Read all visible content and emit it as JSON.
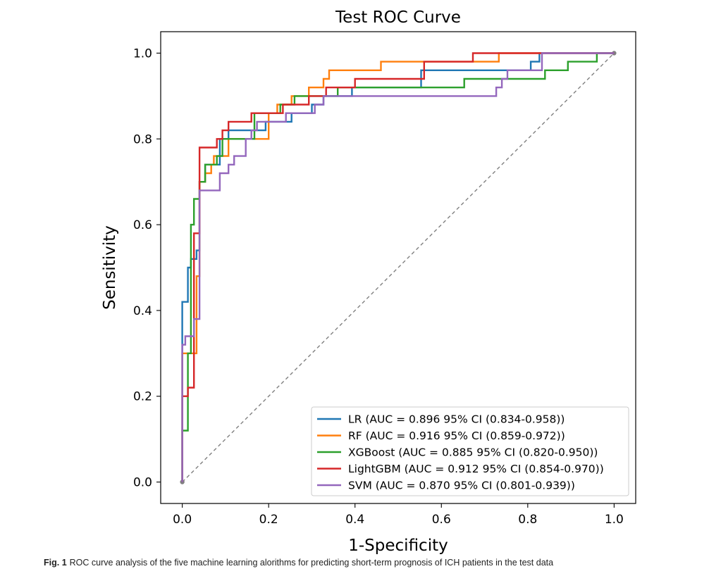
{
  "chart_data": {
    "type": "line",
    "title": "Test ROC Curve",
    "xlabel": "1-Specificity",
    "ylabel": "Sensitivity",
    "xlim": [
      -0.05,
      1.05
    ],
    "ylim": [
      -0.05,
      1.05
    ],
    "xticks": [
      "0.0",
      "0.2",
      "0.4",
      "0.6",
      "0.8",
      "1.0"
    ],
    "yticks": [
      "0.0",
      "0.2",
      "0.4",
      "0.6",
      "0.8",
      "1.0"
    ],
    "grid": false,
    "legend_position": "lower right",
    "reference_line": {
      "x": [
        0,
        1
      ],
      "y": [
        0,
        1
      ],
      "color": "#808080",
      "style": "dashed"
    },
    "series": [
      {
        "name": "LR (AUC = 0.896 95% CI (0.834-0.958))",
        "color": "#1f77b4",
        "x": [
          0,
          0,
          0.013,
          0.013,
          0.02,
          0.02,
          0.033,
          0.033,
          0.04,
          0.04,
          0.053,
          0.053,
          0.087,
          0.087,
          0.107,
          0.107,
          0.173,
          0.173,
          0.193,
          0.193,
          0.227,
          0.227,
          0.253,
          0.253,
          0.28,
          0.28,
          0.3,
          0.3,
          0.327,
          0.327,
          0.36,
          0.36,
          0.393,
          0.393,
          0.553,
          0.553,
          0.6,
          0.6,
          0.807,
          0.807,
          0.827,
          0.827,
          1.0
        ],
        "y": [
          0,
          0.42,
          0.42,
          0.5,
          0.5,
          0.52,
          0.52,
          0.54,
          0.54,
          0.7,
          0.7,
          0.74,
          0.74,
          0.8,
          0.8,
          0.82,
          0.82,
          0.82,
          0.82,
          0.84,
          0.84,
          0.84,
          0.84,
          0.86,
          0.86,
          0.86,
          0.86,
          0.88,
          0.88,
          0.9,
          0.9,
          0.9,
          0.9,
          0.92,
          0.92,
          0.96,
          0.96,
          0.96,
          0.96,
          0.98,
          0.98,
          1.0,
          1.0
        ]
      },
      {
        "name": "RF (AUC = 0.916 95% CI (0.859-0.972))",
        "color": "#ff7f0e",
        "x": [
          0,
          0,
          0.007,
          0.007,
          0.033,
          0.033,
          0.04,
          0.04,
          0.053,
          0.053,
          0.067,
          0.067,
          0.073,
          0.073,
          0.107,
          0.107,
          0.153,
          0.153,
          0.2,
          0.2,
          0.22,
          0.22,
          0.253,
          0.253,
          0.293,
          0.293,
          0.327,
          0.327,
          0.34,
          0.34,
          0.46,
          0.46,
          0.733,
          0.733,
          1.0
        ],
        "y": [
          0,
          0.3,
          0.3,
          0.3,
          0.3,
          0.48,
          0.48,
          0.7,
          0.7,
          0.72,
          0.72,
          0.74,
          0.74,
          0.76,
          0.76,
          0.8,
          0.8,
          0.8,
          0.8,
          0.86,
          0.86,
          0.88,
          0.88,
          0.9,
          0.9,
          0.92,
          0.92,
          0.94,
          0.94,
          0.96,
          0.96,
          0.98,
          0.98,
          1.0,
          1.0
        ]
      },
      {
        "name": "XGBoost (AUC = 0.885 95% CI (0.820-0.950))",
        "color": "#2ca02c",
        "x": [
          0,
          0,
          0.013,
          0.013,
          0.02,
          0.02,
          0.027,
          0.027,
          0.04,
          0.04,
          0.053,
          0.053,
          0.08,
          0.08,
          0.093,
          0.093,
          0.167,
          0.167,
          0.227,
          0.227,
          0.26,
          0.26,
          0.36,
          0.36,
          0.653,
          0.653,
          0.84,
          0.84,
          0.893,
          0.893,
          0.96,
          0.96,
          1.0
        ],
        "y": [
          0,
          0.12,
          0.12,
          0.3,
          0.3,
          0.6,
          0.6,
          0.66,
          0.66,
          0.7,
          0.7,
          0.74,
          0.74,
          0.76,
          0.76,
          0.8,
          0.8,
          0.86,
          0.86,
          0.88,
          0.88,
          0.9,
          0.9,
          0.92,
          0.92,
          0.94,
          0.94,
          0.96,
          0.96,
          0.98,
          0.98,
          1.0,
          1.0
        ]
      },
      {
        "name": "LightGBM (AUC = 0.912 95% CI (0.854-0.970))",
        "color": "#d62728",
        "x": [
          0,
          0,
          0.013,
          0.013,
          0.027,
          0.027,
          0.033,
          0.033,
          0.04,
          0.04,
          0.08,
          0.08,
          0.093,
          0.093,
          0.107,
          0.107,
          0.16,
          0.16,
          0.233,
          0.233,
          0.293,
          0.293,
          0.333,
          0.333,
          0.4,
          0.4,
          0.56,
          0.56,
          0.673,
          0.673,
          1.0
        ],
        "y": [
          0,
          0.2,
          0.2,
          0.22,
          0.22,
          0.58,
          0.58,
          0.58,
          0.58,
          0.78,
          0.78,
          0.8,
          0.8,
          0.82,
          0.82,
          0.84,
          0.84,
          0.86,
          0.86,
          0.88,
          0.88,
          0.9,
          0.9,
          0.92,
          0.92,
          0.94,
          0.94,
          0.98,
          0.98,
          1.0,
          1.0
        ]
      },
      {
        "name": "SVM (AUC = 0.870 95% CI (0.801-0.939))",
        "color": "#9467bd",
        "x": [
          0,
          0,
          0.007,
          0.007,
          0.02,
          0.02,
          0.027,
          0.027,
          0.04,
          0.04,
          0.067,
          0.067,
          0.087,
          0.087,
          0.107,
          0.107,
          0.12,
          0.12,
          0.147,
          0.147,
          0.16,
          0.16,
          0.173,
          0.173,
          0.24,
          0.24,
          0.307,
          0.307,
          0.327,
          0.327,
          0.727,
          0.727,
          0.74,
          0.74,
          0.753,
          0.753,
          0.833,
          0.833,
          1.0
        ],
        "y": [
          0,
          0.32,
          0.32,
          0.34,
          0.34,
          0.34,
          0.34,
          0.38,
          0.38,
          0.68,
          0.68,
          0.68,
          0.68,
          0.72,
          0.72,
          0.74,
          0.74,
          0.76,
          0.76,
          0.8,
          0.8,
          0.82,
          0.82,
          0.84,
          0.84,
          0.86,
          0.86,
          0.88,
          0.88,
          0.9,
          0.9,
          0.92,
          0.92,
          0.94,
          0.94,
          0.96,
          0.96,
          1.0,
          1.0
        ]
      }
    ]
  },
  "caption": {
    "label": "Fig. 1",
    "text": "ROC curve analysis of the five machine learning alorithms for predicting short-term prognosis of ICH patients in the test data"
  }
}
